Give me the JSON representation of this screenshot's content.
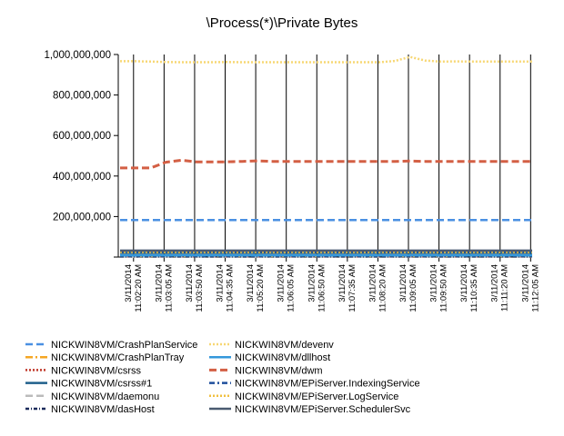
{
  "chart_data": {
    "type": "line",
    "title": "\\Process(*)\\Private Bytes",
    "xlabel": "",
    "ylabel": "",
    "ylim": [
      0,
      1000000000
    ],
    "y_ticks": [
      "200,000,000",
      "400,000,000",
      "600,000,000",
      "800,000,000",
      "1,000,000,000"
    ],
    "y_tick_values": [
      200000000,
      400000000,
      600000000,
      800000000,
      1000000000
    ],
    "grid": "vertical",
    "legend_position": "bottom",
    "x_ticks": [
      {
        "date": "3/11/2014",
        "time": "11:02:20 AM"
      },
      {
        "date": "3/11/2014",
        "time": "11:03:05 AM"
      },
      {
        "date": "3/11/2014",
        "time": "11:03:50 AM"
      },
      {
        "date": "3/11/2014",
        "time": "11:04:35 AM"
      },
      {
        "date": "3/11/2014",
        "time": "11:05:20 AM"
      },
      {
        "date": "3/11/2014",
        "time": "11:06:05 AM"
      },
      {
        "date": "3/11/2014",
        "time": "11:06:50 AM"
      },
      {
        "date": "3/11/2014",
        "time": "11:07:35 AM"
      },
      {
        "date": "3/11/2014",
        "time": "11:08:20 AM"
      },
      {
        "date": "3/11/2014",
        "time": "11:09:05 AM"
      },
      {
        "date": "3/11/2014",
        "time": "11:09:50 AM"
      },
      {
        "date": "3/11/2014",
        "time": "11:10:35 AM"
      },
      {
        "date": "3/11/2014",
        "time": "11:11:20 AM"
      },
      {
        "date": "3/11/2014",
        "time": "11:12:05 AM"
      }
    ],
    "series": [
      {
        "name": "NICKWIN8VM/CrashPlanService",
        "color": "#4a90e2",
        "dash": "8,4",
        "width": 2.5,
        "values": [
          183000000,
          183000000,
          183000000,
          183000000,
          183000000,
          183000000,
          183000000,
          183000000,
          183000000,
          183000000,
          183000000,
          183000000,
          183000000,
          183000000,
          183000000,
          183000000,
          183000000,
          183000000,
          183000000,
          183000000,
          183000000,
          183000000,
          183000000,
          183000000,
          183000000,
          183000000,
          183000000,
          183000000
        ]
      },
      {
        "name": "NICKWIN8VM/CrashPlanTray",
        "color": "#f5a623",
        "dash": "8,3,2,3",
        "width": 2.5,
        "values": [
          5000000,
          5000000,
          5000000,
          5000000,
          5000000,
          5000000,
          5000000,
          5000000,
          5000000,
          5000000,
          5000000,
          5000000,
          5000000,
          5000000,
          5000000,
          5000000,
          5000000,
          5000000,
          5000000,
          5000000,
          5000000,
          5000000,
          5000000,
          5000000,
          5000000,
          5000000,
          5000000,
          5000000
        ]
      },
      {
        "name": "NICKWIN8VM/csrss",
        "color": "#c0392b",
        "dash": "2,2",
        "width": 2.5,
        "values": [
          4000000,
          4000000,
          4000000,
          4000000,
          4000000,
          4000000,
          4000000,
          4000000,
          4000000,
          4000000,
          4000000,
          4000000,
          4000000,
          4000000,
          4000000,
          4000000,
          4000000,
          4000000,
          4000000,
          4000000,
          4000000,
          4000000,
          4000000,
          4000000,
          4000000,
          4000000,
          4000000,
          4000000
        ]
      },
      {
        "name": "NICKWIN8VM/csrss#1",
        "color": "#1f5f8b",
        "dash": "",
        "width": 2.5,
        "values": [
          20000000,
          20000000,
          20000000,
          20000000,
          20000000,
          20000000,
          20000000,
          20000000,
          20000000,
          20000000,
          20000000,
          20000000,
          20000000,
          20000000,
          20000000,
          20000000,
          20000000,
          20000000,
          20000000,
          20000000,
          20000000,
          20000000,
          20000000,
          20000000,
          20000000,
          20000000,
          20000000,
          20000000
        ]
      },
      {
        "name": "NICKWIN8VM/daemonu",
        "color": "#bbbbbb",
        "dash": "8,4",
        "width": 2.5,
        "values": [
          2000000,
          2000000,
          2000000,
          2000000,
          2000000,
          2000000,
          2000000,
          2000000,
          2000000,
          2000000,
          2000000,
          2000000,
          2000000,
          2000000,
          2000000,
          2000000,
          2000000,
          2000000,
          2000000,
          2000000,
          2000000,
          2000000,
          2000000,
          2000000,
          2000000,
          2000000,
          2000000,
          2000000
        ]
      },
      {
        "name": "NICKWIN8VM/dasHost",
        "color": "#1a2a5a",
        "dash": "4,2,1,2",
        "width": 2.5,
        "values": [
          3000000,
          3000000,
          3000000,
          3000000,
          3000000,
          3000000,
          3000000,
          3000000,
          3000000,
          3000000,
          3000000,
          3000000,
          3000000,
          3000000,
          3000000,
          3000000,
          3000000,
          3000000,
          3000000,
          3000000,
          3000000,
          3000000,
          3000000,
          3000000,
          3000000,
          3000000,
          3000000,
          3000000
        ]
      },
      {
        "name": "NICKWIN8VM/devenv",
        "color": "#f7d774",
        "dash": "2,2",
        "width": 2.5,
        "values": [
          967000000,
          967000000,
          965000000,
          963000000,
          962000000,
          962000000,
          962000000,
          963000000,
          962000000,
          962000000,
          962000000,
          962000000,
          962000000,
          962000000,
          962000000,
          962000000,
          962000000,
          962000000,
          968000000,
          988000000,
          970000000,
          965000000,
          966000000,
          965000000,
          965000000,
          965000000,
          965000000,
          965000000
        ]
      },
      {
        "name": "NICKWIN8VM/dllhost",
        "color": "#3498db",
        "dash": "",
        "width": 2.5,
        "values": [
          8000000,
          8000000,
          8000000,
          8000000,
          8000000,
          8000000,
          8000000,
          8000000,
          8000000,
          8000000,
          8000000,
          8000000,
          8000000,
          8000000,
          8000000,
          8000000,
          8000000,
          8000000,
          8000000,
          8000000,
          8000000,
          8000000,
          8000000,
          8000000,
          8000000,
          8000000,
          8000000,
          8000000
        ]
      },
      {
        "name": "NICKWIN8VM/dwm",
        "color": "#d35f44",
        "dash": "8,4",
        "width": 3,
        "values": [
          440000000,
          440000000,
          440000000,
          468000000,
          478000000,
          470000000,
          470000000,
          470000000,
          472000000,
          475000000,
          472000000,
          472000000,
          472000000,
          472000000,
          472000000,
          472000000,
          472000000,
          472000000,
          472000000,
          474000000,
          472000000,
          472000000,
          472000000,
          472000000,
          472000000,
          472000000,
          472000000,
          472000000
        ]
      },
      {
        "name": "NICKWIN8VM/EPiServer.IndexingService",
        "color": "#1f4e9c",
        "dash": "6,3,2,3",
        "width": 2.5,
        "values": [
          28000000,
          28000000,
          28000000,
          28000000,
          28000000,
          28000000,
          28000000,
          28000000,
          28000000,
          28000000,
          28000000,
          28000000,
          28000000,
          28000000,
          28000000,
          28000000,
          28000000,
          28000000,
          28000000,
          28000000,
          28000000,
          28000000,
          28000000,
          28000000,
          28000000,
          28000000,
          28000000,
          28000000
        ]
      },
      {
        "name": "NICKWIN8VM/EPiServer.LogService",
        "color": "#f0c040",
        "dash": "2,2",
        "width": 2.5,
        "values": [
          25000000,
          25000000,
          25000000,
          25000000,
          25000000,
          25000000,
          25000000,
          25000000,
          25000000,
          25000000,
          25000000,
          25000000,
          25000000,
          25000000,
          25000000,
          25000000,
          25000000,
          25000000,
          25000000,
          25000000,
          25000000,
          25000000,
          25000000,
          25000000,
          25000000,
          25000000,
          25000000,
          25000000
        ]
      },
      {
        "name": "NICKWIN8VM/EPiServer.SchedulerSvc",
        "color": "#4a5a70",
        "dash": "",
        "width": 2.5,
        "values": [
          32000000,
          32000000,
          32000000,
          32000000,
          32000000,
          32000000,
          32000000,
          32000000,
          32000000,
          32000000,
          32000000,
          32000000,
          32000000,
          32000000,
          32000000,
          32000000,
          32000000,
          32000000,
          32000000,
          32000000,
          32000000,
          32000000,
          32000000,
          32000000,
          32000000,
          32000000,
          32000000,
          32000000
        ]
      }
    ]
  }
}
